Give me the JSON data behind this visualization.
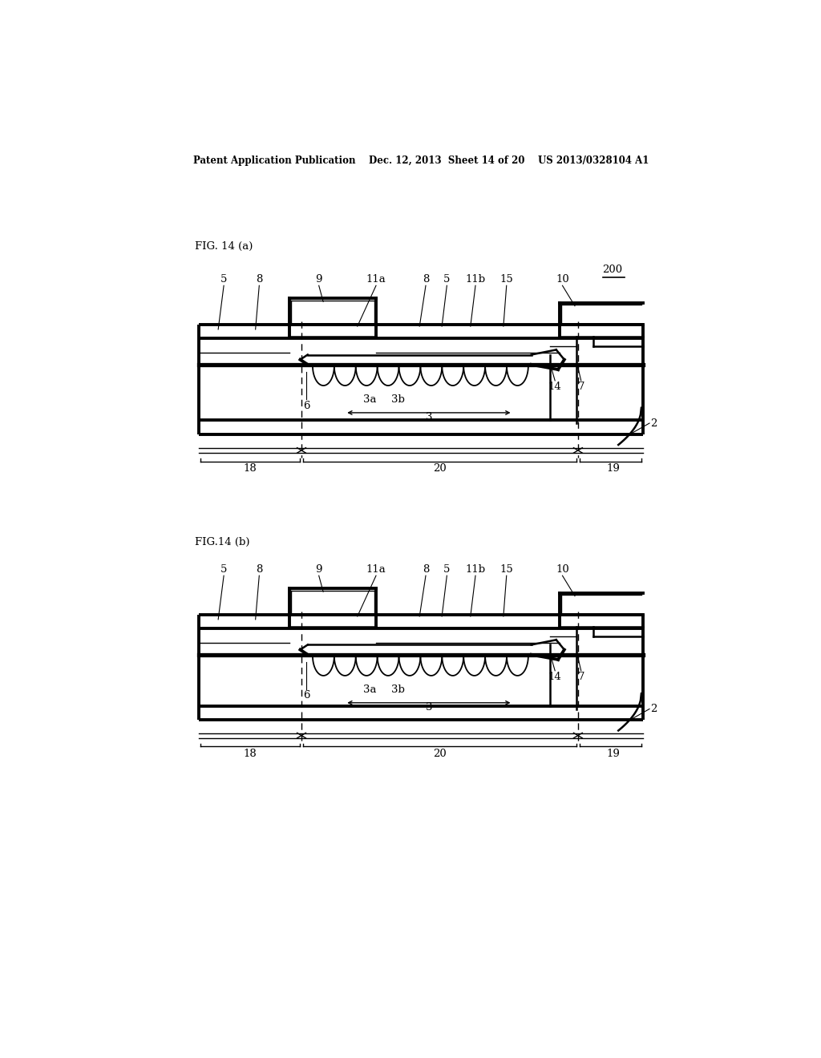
{
  "bg_color": "#ffffff",
  "line_color": "#000000",
  "header_text": "Patent Application Publication    Dec. 12, 2013  Sheet 14 of 20    US 2013/0328104 A1",
  "fig_a_label": "FIG. 14 (a)",
  "fig_b_label": "FIG.14 (b)",
  "ref_200": "200",
  "lw_outer": 2.8,
  "lw_inner": 1.8,
  "lw_thin": 1.0,
  "lw_gate": 2.8,
  "fs_label": 9.5,
  "fs_header": 8.5,
  "diag_a_oy": 320,
  "diag_b_oy": 790
}
